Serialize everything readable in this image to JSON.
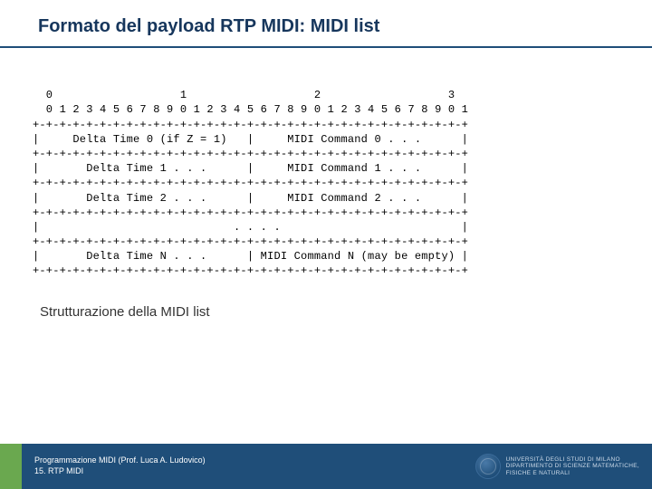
{
  "title": "Formato del payload RTP MIDI: MIDI list",
  "subtitle": "Strutturazione della MIDI list",
  "ascii": {
    "ruler_major": "  0                   1                   2                   3",
    "ruler_minor": "  0 1 2 3 4 5 6 7 8 9 0 1 2 3 4 5 6 7 8 9 0 1 2 3 4 5 6 7 8 9 0 1",
    "divider": "+-+-+-+-+-+-+-+-+-+-+-+-+-+-+-+-+-+-+-+-+-+-+-+-+-+-+-+-+-+-+-+-+",
    "row0": "|     Delta Time 0 (if Z = 1)   |     MIDI Command 0 . . .      |",
    "row1": "|       Delta Time 1 . . .      |     MIDI Command 1 . . .      |",
    "row2": "|       Delta Time 2 . . .      |     MIDI Command 2 . . .      |",
    "rowdots": "|                             . . . .                           |",
    "rown": "|       Delta Time N . . .      | MIDI Command N (may be empty) |"
  },
  "footer": {
    "line1": "Programmazione MIDI (Prof. Luca A. Ludovico)",
    "line2": "15. RTP MIDI",
    "uni1": "UNIVERSITÀ DEGLI STUDI DI MILANO",
    "uni2": "DIPARTIMENTO DI SCIENZE MATEMATICHE,",
    "uni3": "FISICHE E NATURALI"
  },
  "colors": {
    "title": "#16365c",
    "underline": "#1f4e79",
    "footer_bar": "#1f4e79",
    "footer_accent": "#6aa84f",
    "footer_text": "#ffffff"
  }
}
